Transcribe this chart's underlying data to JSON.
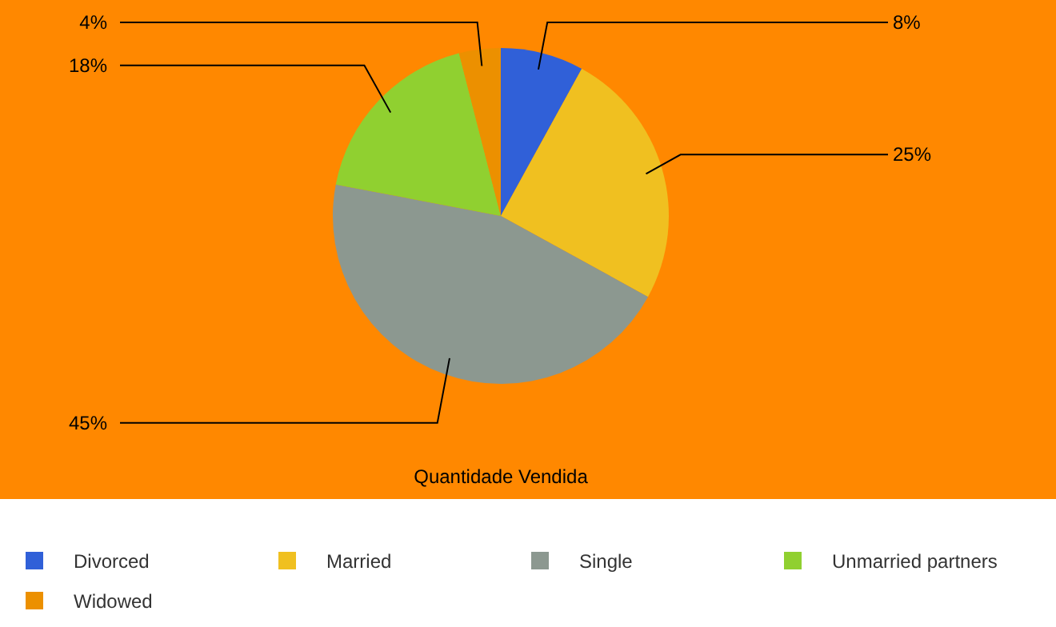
{
  "chart_data": {
    "type": "pie",
    "title": "Quantidade Vendida",
    "categories": [
      "Divorced",
      "Married",
      "Single",
      "Unmarried partners",
      "Widowed"
    ],
    "values": [
      8,
      25,
      45,
      18,
      4
    ],
    "value_labels": [
      "8%",
      "25%",
      "45%",
      "18%",
      "4%"
    ],
    "colors": [
      "#3060d8",
      "#f0c020",
      "#8c9890",
      "#90d030",
      "#ec9000"
    ],
    "legend": "bottom"
  }
}
